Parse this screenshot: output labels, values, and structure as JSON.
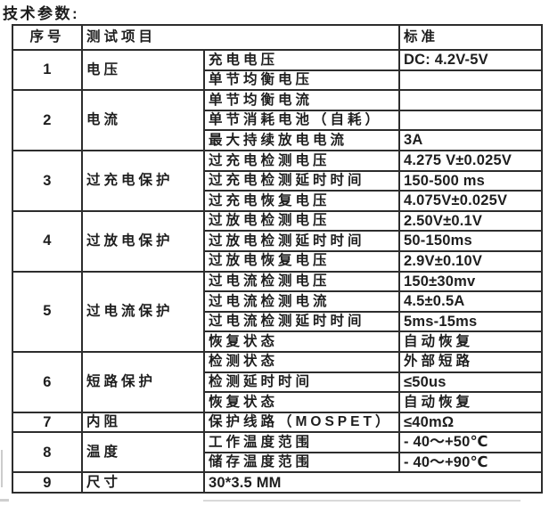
{
  "page_title": "技术参数:",
  "colors": {
    "background": "#ffffff",
    "text": "#1e1e1e",
    "border": "#2d2d2d"
  },
  "table": {
    "headers": {
      "col_no": "序号",
      "col_item": "测试项目",
      "col_standard": "标准"
    },
    "groups": [
      {
        "no": "1",
        "category": "电压",
        "rows": [
          {
            "item": "充电电压",
            "standard": "DC: 4.2V-5V"
          },
          {
            "item": "单节均衡电压",
            "standard": ""
          }
        ]
      },
      {
        "no": "2",
        "category": "电流",
        "rows": [
          {
            "item": "单节均衡电流",
            "standard": ""
          },
          {
            "item": "单节消耗电池（自耗）",
            "standard": ""
          },
          {
            "item": "最大持续放电电流",
            "standard": "3A"
          }
        ]
      },
      {
        "no": "3",
        "category": "过充电保护",
        "rows": [
          {
            "item": "过充电检测电压",
            "standard": "4.275 V±0.025V"
          },
          {
            "item": "过充电检测延时时间",
            "standard": "150-500 ms"
          },
          {
            "item": "过充电恢复电压",
            "standard": "4.075V±0.025V"
          }
        ]
      },
      {
        "no": "4",
        "category": "过放电保护",
        "rows": [
          {
            "item": "过放电检测电压",
            "standard": "2.50V±0.1V"
          },
          {
            "item": "过放电检测延时时间",
            "standard": "50-150ms"
          },
          {
            "item": "过放电恢复电压",
            "standard": "2.9V±0.10V"
          }
        ]
      },
      {
        "no": "5",
        "category": "过电流保护",
        "rows": [
          {
            "item": "过电流检测电压",
            "standard": "150±30mv"
          },
          {
            "item": "过电流检测电流",
            "standard": "4.5±0.5A"
          },
          {
            "item": "过电流检测延时时间",
            "standard": "5ms-15ms"
          },
          {
            "item": "恢复状态",
            "standard": "自动恢复"
          }
        ]
      },
      {
        "no": "6",
        "category": "短路保护",
        "rows": [
          {
            "item": "检测状态",
            "standard": "外部短路"
          },
          {
            "item": "检测延时时间",
            "standard": "≤50us"
          },
          {
            "item": "恢复状态",
            "standard": "自动恢复"
          }
        ]
      },
      {
        "no": "7",
        "category": "内阻",
        "rows": [
          {
            "item": "保护线路（MOSPET）",
            "standard": "≤40mΩ"
          }
        ]
      },
      {
        "no": "8",
        "category": "温度",
        "rows": [
          {
            "item": "工作温度范围",
            "standard": "- 40～+50℃"
          },
          {
            "item": "储存温度范围",
            "standard": "- 40～+90℃"
          }
        ]
      },
      {
        "no": "9",
        "category": "尺寸",
        "rows": [
          {
            "item": "30*3.5 MM",
            "standard": "",
            "span": true
          }
        ]
      }
    ]
  }
}
